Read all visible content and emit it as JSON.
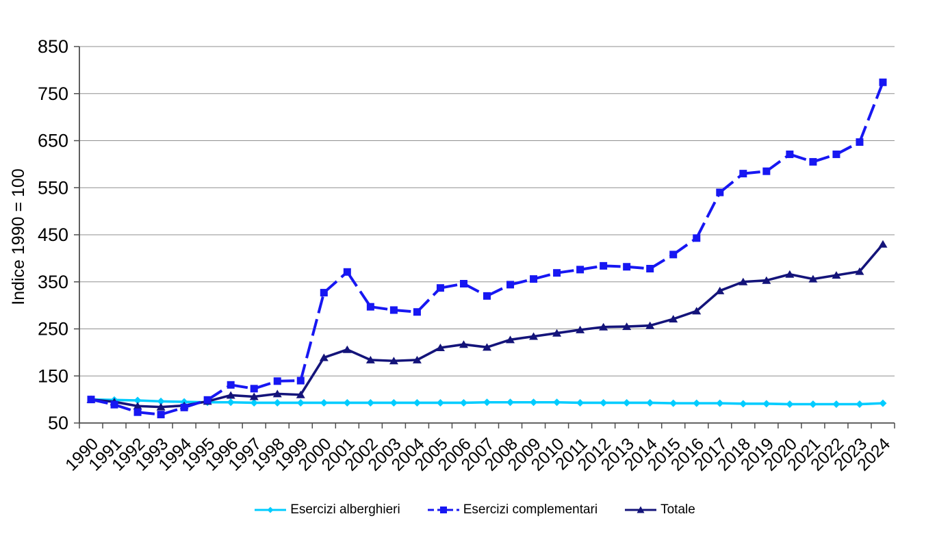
{
  "chart_data": {
    "type": "line",
    "title": "",
    "ylabel": "Indice 1990 = 100",
    "xlabel": "",
    "grid": true,
    "legend_position": "bottom",
    "x_categories": [
      "1990",
      "1991",
      "1992",
      "1993",
      "1994",
      "1995",
      "1996",
      "1997",
      "1998",
      "1999",
      "2000",
      "2001",
      "2002",
      "2003",
      "2004",
      "2005",
      "2006",
      "2007",
      "2008",
      "2009",
      "2010",
      "2011",
      "2012",
      "2013",
      "2014",
      "2015",
      "2016",
      "2017",
      "2018",
      "2019",
      "2020",
      "2021",
      "2022",
      "2023",
      "2024"
    ],
    "y_axis": {
      "min": 50,
      "max": 850,
      "tick_interval": 100,
      "ticks": [
        850,
        750,
        650,
        550,
        450,
        350,
        250,
        150,
        50
      ]
    },
    "series": [
      {
        "name": "Esercizi alberghieri",
        "color": "#00CCFF",
        "line_style": "solid",
        "marker": "diamond",
        "values": [
          100,
          99,
          98,
          96,
          95,
          94,
          94,
          93,
          93,
          93,
          93,
          93,
          93,
          93,
          93,
          93,
          93,
          94,
          94,
          94,
          94,
          93,
          93,
          93,
          93,
          92,
          92,
          92,
          91,
          91,
          90,
          90,
          90,
          90,
          92
        ]
      },
      {
        "name": "Esercizi complementari",
        "color": "#1717F2",
        "line_style": "dashed",
        "marker": "square",
        "values": [
          100,
          89,
          73,
          68,
          83,
          99,
          131,
          123,
          139,
          140,
          327,
          371,
          297,
          290,
          286,
          337,
          346,
          320,
          344,
          356,
          369,
          376,
          384,
          382,
          378,
          408,
          443,
          540,
          580,
          585,
          621,
          605,
          621,
          647,
          774
        ]
      },
      {
        "name": "Totale",
        "color": "#14147A",
        "line_style": "solid",
        "marker": "triangle",
        "values": [
          100,
          95,
          86,
          84,
          87,
          96,
          109,
          106,
          112,
          110,
          189,
          206,
          184,
          182,
          184,
          210,
          217,
          211,
          227,
          234,
          241,
          248,
          254,
          255,
          257,
          271,
          288,
          331,
          350,
          353,
          366,
          356,
          364,
          372,
          430
        ]
      }
    ],
    "style": {
      "grid_color": "#8f8f8f",
      "axis_color": "#4d4d4d",
      "text_color": "#000000"
    }
  }
}
